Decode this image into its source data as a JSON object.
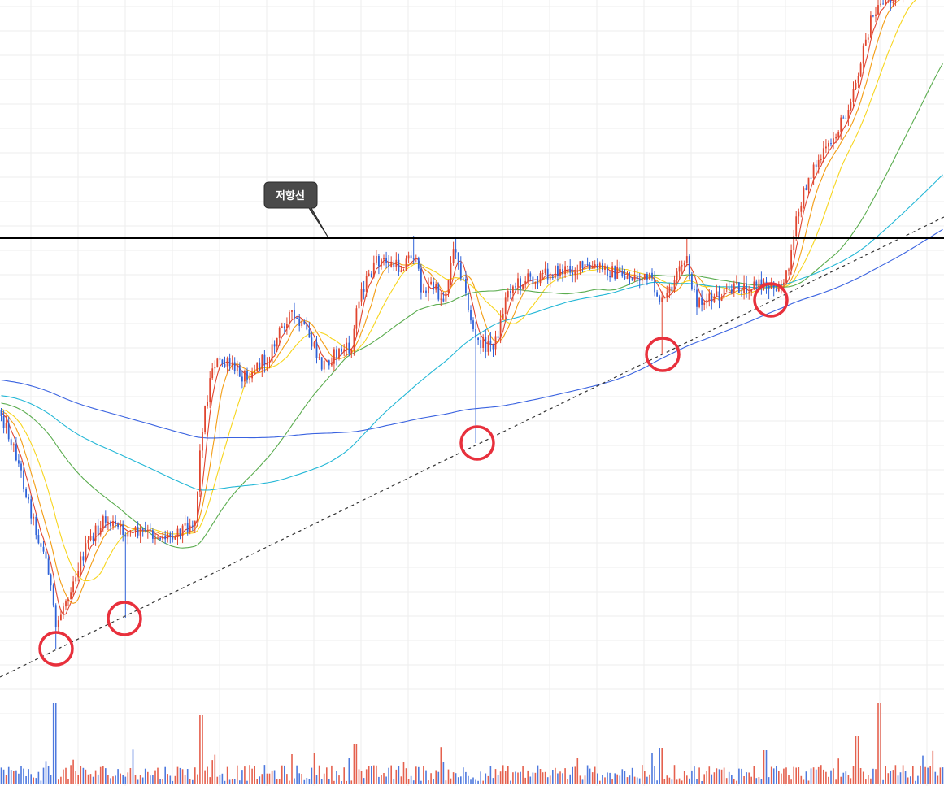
{
  "chart_data": {
    "type": "candlestick",
    "title": "",
    "xlabel": "",
    "ylabel": "",
    "grid": true,
    "candle_count": 380,
    "colors": {
      "up": "#e0452f",
      "down": "#2f62d8",
      "grid": "#eeeeee",
      "resistance": "#000000",
      "trendline": "#333333",
      "marker": "#e8303c",
      "callout_bg": "#4a4a4a",
      "ma5": "#e0452f",
      "ma10": "#f39c12",
      "ma20": "#f7d51d",
      "ma60": "#5aac4e",
      "ma120": "#23b7d6",
      "ma240": "#3a63e0"
    },
    "price_path": [
      [
        0,
        505
      ],
      [
        20,
        560
      ],
      [
        45,
        655
      ],
      [
        60,
        700
      ],
      [
        68,
        775
      ],
      [
        78,
        745
      ],
      [
        95,
        700
      ],
      [
        110,
        665
      ],
      [
        130,
        640
      ],
      [
        152,
        655
      ],
      [
        175,
        655
      ],
      [
        205,
        660
      ],
      [
        240,
        640
      ],
      [
        248,
        530
      ],
      [
        262,
        445
      ],
      [
        282,
        450
      ],
      [
        300,
        462
      ],
      [
        330,
        440
      ],
      [
        355,
        385
      ],
      [
        378,
        410
      ],
      [
        395,
        450
      ],
      [
        420,
        430
      ],
      [
        433,
        430
      ],
      [
        440,
        365
      ],
      [
        465,
        320
      ],
      [
        492,
        330
      ],
      [
        508,
        310
      ],
      [
        520,
        360
      ],
      [
        530,
        350
      ],
      [
        545,
        370
      ],
      [
        560,
        300
      ],
      [
        570,
        350
      ],
      [
        585,
        420
      ],
      [
        600,
        425
      ],
      [
        610,
        420
      ],
      [
        625,
        355
      ],
      [
        645,
        345
      ],
      [
        680,
        335
      ],
      [
        710,
        330
      ],
      [
        740,
        330
      ],
      [
        770,
        340
      ],
      [
        800,
        345
      ],
      [
        815,
        375
      ],
      [
        830,
        345
      ],
      [
        845,
        320
      ],
      [
        855,
        370
      ],
      [
        875,
        370
      ],
      [
        905,
        355
      ],
      [
        930,
        350
      ],
      [
        965,
        350
      ],
      [
        980,
        270
      ],
      [
        995,
        215
      ],
      [
        1020,
        180
      ],
      [
        1040,
        140
      ],
      [
        1055,
        90
      ],
      [
        1070,
        30
      ],
      [
        1085,
        0
      ],
      [
        1110,
        -10
      ],
      [
        1161,
        -20
      ]
    ],
    "resistance_line": {
      "label": "저항선"
    },
    "support_line": {
      "style": "dashed"
    },
    "touch_points_count": 5,
    "volume_spike_count": 7
  }
}
